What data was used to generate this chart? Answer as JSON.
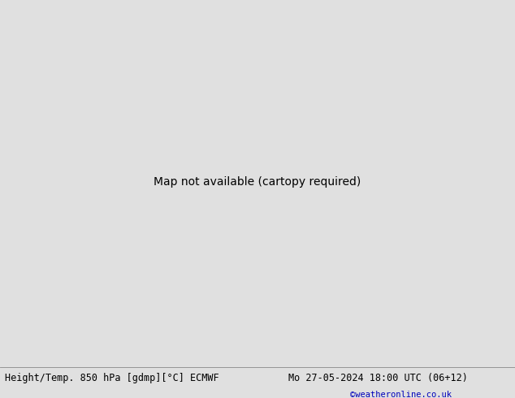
{
  "title_left": "Height/Temp. 850 hPa [gdmp][°C] ECMWF",
  "title_right": "Mo 27-05-2024 18:00 UTC (06+12)",
  "credit": "©weatheronline.co.uk",
  "fig_width": 6.34,
  "fig_height": 4.9,
  "dpi": 100,
  "land_color": "#c8e8a0",
  "sea_color": "#c8c8c8",
  "bottom_bg": "#f0f0f0",
  "text_color": "#000000",
  "credit_color": "#0000bb",
  "title_fontsize": 8.5,
  "credit_fontsize": 7.5,
  "map_extent": [
    -25,
    50,
    30,
    75
  ]
}
